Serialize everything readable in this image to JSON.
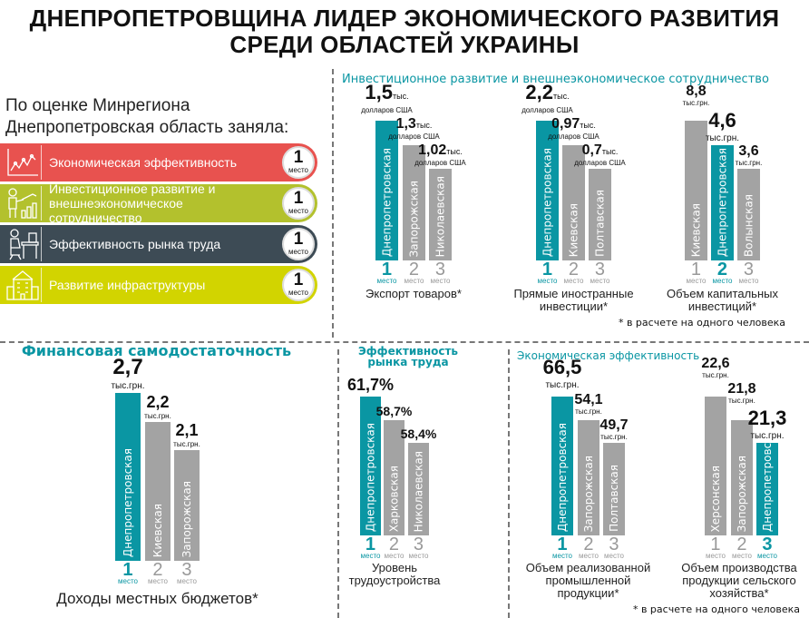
{
  "title": {
    "line1": "ДНЕПРОПЕТРОВЩИНА ЛИДЕР ЭКОНОМИЧЕСКОГО РАЗВИТИЯ",
    "line2": "СРЕДИ ОБЛАСТЕЙ УКРАИНЫ"
  },
  "intro": {
    "line1": "По оценке Минрегиона",
    "line2": "Днепропетровская область заняла:"
  },
  "categories": [
    {
      "label": "Экономическая эффективность",
      "rank": "1",
      "rank_word": "место",
      "color": "#e8524f",
      "icon": "chart-growth-icon"
    },
    {
      "label": "Инвестиционное развитие и внешнеэкономическое сотрудничество",
      "rank": "1",
      "rank_word": "место",
      "color": "#b3c12d",
      "icon": "presenter-chart-icon"
    },
    {
      "label": "Эффективность рынка труда",
      "rank": "1",
      "rank_word": "место",
      "color": "#3d4b55",
      "icon": "office-worker-icon"
    },
    {
      "label": "Развитие инфраструктуры",
      "rank": "1",
      "rank_word": "место",
      "color": "#d2d400",
      "icon": "building-icon"
    }
  ],
  "colors": {
    "highlight": "#0a96a3",
    "other": "#a3a3a3"
  },
  "sections": {
    "invest": "Инвестиционное развитие и внешнеэкономическое сотрудничество",
    "finance": "Финансовая самодостаточность",
    "labor_line1": "Эффективность",
    "labor_line2": "рынка труда",
    "econ": "Экономическая эффективность"
  },
  "footnotes": {
    "top": "* в расчете на одного человека",
    "bottom": "* в расчете на одного человека"
  },
  "chart_data": [
    {
      "type": "bar",
      "title": "Экспорт товаров*",
      "unit_inline": "тыс.",
      "unit_below": "долларов США",
      "categories": [
        "Днепропетровская",
        "Запорожская",
        "Николаевская"
      ],
      "values": [
        1.5,
        1.3,
        1.02
      ],
      "value_labels": [
        "1,5",
        "1,3",
        "1,02"
      ],
      "ranks": [
        "1",
        "2",
        "3"
      ],
      "highlight": 0,
      "rank_word": "место"
    },
    {
      "type": "bar",
      "title": "Прямые иностранные инвестиции*",
      "unit_inline": "тыс.",
      "unit_below": "долларов США",
      "categories": [
        "Днепропетровская",
        "Киевская",
        "Полтавская"
      ],
      "values": [
        2.2,
        0.97,
        0.7
      ],
      "value_labels": [
        "2,2",
        "0,97",
        "0,7"
      ],
      "ranks": [
        "1",
        "2",
        "3"
      ],
      "highlight": 0,
      "rank_word": "место"
    },
    {
      "type": "bar",
      "title": "Объем капитальных инвестиций*",
      "unit_inline": "",
      "unit_below": "тыс.грн.",
      "categories": [
        "Киевская",
        "Днепропетровская",
        "Волынская"
      ],
      "values": [
        8.8,
        4.6,
        3.6
      ],
      "value_labels": [
        "8,8",
        "4,6",
        "3,6"
      ],
      "ranks": [
        "1",
        "2",
        "3"
      ],
      "highlight": 1,
      "rank_word": "место"
    },
    {
      "type": "bar",
      "title": "Доходы местных бюджетов*",
      "unit_inline": "",
      "unit_below": "тыс.грн.",
      "categories": [
        "Днепропетровская",
        "Киевская",
        "Запорожская"
      ],
      "values": [
        2.7,
        2.2,
        2.1
      ],
      "value_labels": [
        "2,7",
        "2,2",
        "2,1"
      ],
      "ranks": [
        "1",
        "2",
        "3"
      ],
      "highlight": 0,
      "rank_word": "место"
    },
    {
      "type": "bar",
      "title": "Уровень трудоустройства",
      "unit_inline": "",
      "unit_below": "",
      "categories": [
        "Днепропетровская",
        "Харковская",
        "Николаевская"
      ],
      "values": [
        61.7,
        58.7,
        58.4
      ],
      "value_labels": [
        "61,7%",
        "58,7%",
        "58,4%"
      ],
      "ranks": [
        "1",
        "2",
        "3"
      ],
      "highlight": 0,
      "rank_word": "место"
    },
    {
      "type": "bar",
      "title": "Объем реализованной промышленной продукции*",
      "unit_inline": "",
      "unit_below": "тыс.грн.",
      "categories": [
        "Днепропетровская",
        "Запорожская",
        "Полтавская"
      ],
      "values": [
        66.5,
        54.1,
        49.7
      ],
      "value_labels": [
        "66,5",
        "54,1",
        "49,7"
      ],
      "ranks": [
        "1",
        "2",
        "3"
      ],
      "highlight": 0,
      "rank_word": "место"
    },
    {
      "type": "bar",
      "title": "Объем производства продукции сельского хозяйства*",
      "unit_inline": "",
      "unit_below": "тыс.грн.",
      "categories": [
        "Херсонская",
        "Запорожская",
        "Днепропетровская"
      ],
      "values": [
        22.6,
        21.8,
        21.3
      ],
      "value_labels": [
        "22,6",
        "21,8",
        "21,3"
      ],
      "ranks": [
        "1",
        "2",
        "3"
      ],
      "highlight": 2,
      "rank_word": "место"
    }
  ]
}
